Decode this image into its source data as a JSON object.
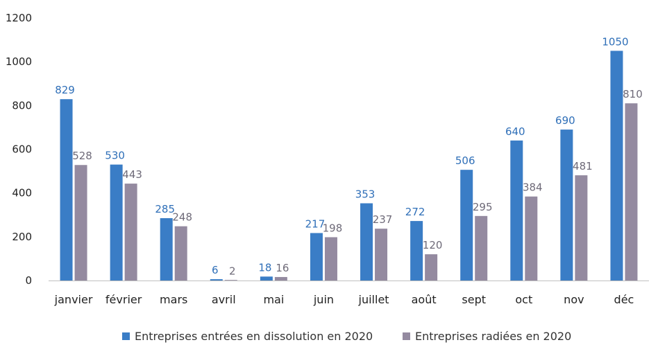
{
  "chart_data": {
    "type": "bar",
    "title": "",
    "xlabel": "",
    "ylabel": "",
    "ylim": [
      0,
      1200
    ],
    "yticks": [
      0,
      200,
      400,
      600,
      800,
      1000,
      1200
    ],
    "grid": false,
    "legend_position": "bottom",
    "categories": [
      "janvier",
      "février",
      "mars",
      "avril",
      "mai",
      "juin",
      "juillet",
      "août",
      "sept",
      "oct",
      "nov",
      "déc"
    ],
    "series": [
      {
        "name": "Entreprises entrées en dissolution en 2020",
        "color": "#3a7dc6",
        "label_color": "#2f6fb8",
        "values": [
          829,
          530,
          285,
          6,
          18,
          217,
          353,
          272,
          506,
          640,
          690,
          1050
        ]
      },
      {
        "name": "Entreprises radiées en 2020",
        "color": "#948aa0",
        "label_color": "#6e6a78",
        "values": [
          528,
          443,
          248,
          2,
          16,
          198,
          237,
          120,
          295,
          384,
          481,
          810
        ]
      }
    ]
  }
}
